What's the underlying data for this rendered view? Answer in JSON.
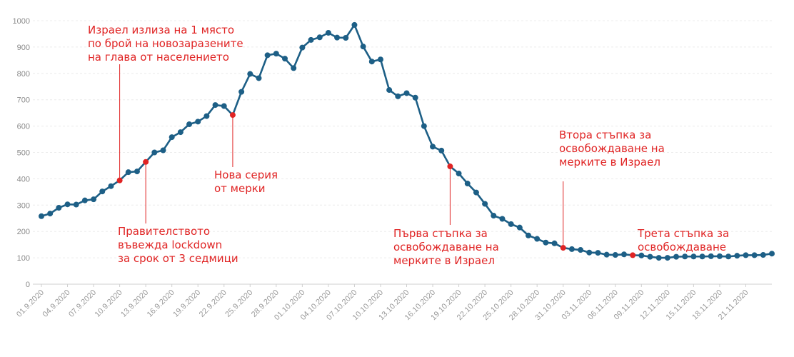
{
  "chart_data": {
    "type": "line",
    "ylim": [
      0,
      1000
    ],
    "yticks": [
      0,
      100,
      200,
      300,
      400,
      500,
      600,
      700,
      800,
      900,
      1000
    ],
    "grid": true,
    "xtick_labels": [
      "01.9.2020",
      "04.9.2020",
      "07.9.2020",
      "10.9.2020",
      "13.9.2020",
      "16.9.2020",
      "19.9.2020",
      "22.9.2020",
      "25.9.2020",
      "28.9.2020",
      "01.10.2020",
      "04.10.2020",
      "07.10.2020",
      "10.10.2020",
      "13.10.2020",
      "16.10.2020",
      "19.10.2020",
      "22.10.2020",
      "25.10.2020",
      "28.10.2020",
      "31.10.2020",
      "03.11.2020",
      "06.11.2020",
      "09.11.2020",
      "12.11.2020",
      "15.11.2020",
      "18.11.2020",
      "21.11.2020"
    ],
    "x_start": "01.9.2020",
    "x_end": "23.11.2020",
    "series": [
      {
        "color": "#1d5f86",
        "values": [
          258,
          268,
          290,
          303,
          302,
          318,
          322,
          352,
          372,
          394,
          425,
          428,
          464,
          500,
          508,
          558,
          577,
          607,
          617,
          638,
          680,
          676,
          642,
          730,
          798,
          782,
          869,
          875,
          856,
          820,
          898,
          927,
          937,
          954,
          936,
          935,
          984,
          902,
          845,
          853,
          737,
          713,
          725,
          708,
          600,
          522,
          507,
          447,
          420,
          382,
          348,
          305,
          260,
          248,
          228,
          215,
          185,
          172,
          158,
          155,
          138,
          133,
          130,
          120,
          119,
          112,
          111,
          113,
          110,
          109,
          104,
          100,
          100,
          104,
          105,
          105,
          105,
          106,
          106,
          105,
          108,
          110,
          110,
          111,
          116
        ],
        "highlights": [
          9,
          12,
          22,
          47,
          60,
          68
        ]
      }
    ],
    "highlight_color": "#e02424",
    "annotations": [
      {
        "lines": [
          "Израел излиза на 1 място",
          "по брой на новозаразените",
          "на глава от населението"
        ]
      },
      {
        "lines": [
          "Правителството",
          "въвежда lockdown",
          "за срок от 3 седмици"
        ]
      },
      {
        "lines": [
          "Нова серия",
          "от мерки"
        ]
      },
      {
        "lines": [
          "Първа стъпка за",
          "освобождаване на",
          "мерките в Израел"
        ]
      },
      {
        "lines": [
          "Втора стъпка за",
          "освобождаване на",
          "мерките в Израел"
        ]
      },
      {
        "lines": [
          "Трета стъпка за",
          "освобождаване"
        ]
      }
    ]
  }
}
